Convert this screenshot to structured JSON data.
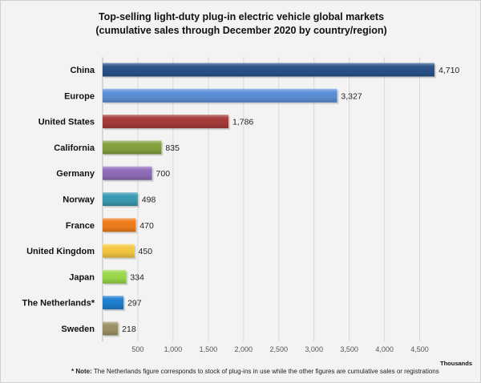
{
  "chart_data": {
    "type": "bar",
    "orientation": "horizontal",
    "title": "Top-selling light-duty plug-in electric vehicle global markets",
    "subtitle": "(cumulative sales through December 2020 by country/region)",
    "categories": [
      "China",
      "Europe",
      "United States",
      "California",
      "Germany",
      "Norway",
      "France",
      "United Kingdom",
      "Japan",
      "The Netherlands*",
      "Sweden"
    ],
    "values": [
      4710,
      3327,
      1786,
      835,
      700,
      498,
      470,
      450,
      334,
      297,
      218
    ],
    "value_labels": [
      "4,710",
      "3,327",
      "1,786",
      "835",
      "700",
      "498",
      "470",
      "450",
      "334",
      "297",
      "218"
    ],
    "colors": [
      "#2a5289",
      "#5b8fd6",
      "#a63c3a",
      "#82a13e",
      "#8f6db8",
      "#3b9bb2",
      "#f07d1c",
      "#f5c842",
      "#99d84a",
      "#1f7fd0",
      "#9c9266"
    ],
    "xticks": [
      500,
      1000,
      1500,
      2000,
      2500,
      3000,
      3500,
      4000,
      4500
    ],
    "xtick_labels": [
      "500",
      "1,000",
      "1,500",
      "2,000",
      "2,500",
      "3,000",
      "3,500",
      "4,000",
      "4,500"
    ],
    "xlim": [
      0,
      4800
    ],
    "xlabel": "Thousands",
    "grid": true
  },
  "note_prefix": "* Note:",
  "note": "The Netherlands figure corresponds to stock of plug-ins in use while the other figures are cumulative sales or registrations"
}
